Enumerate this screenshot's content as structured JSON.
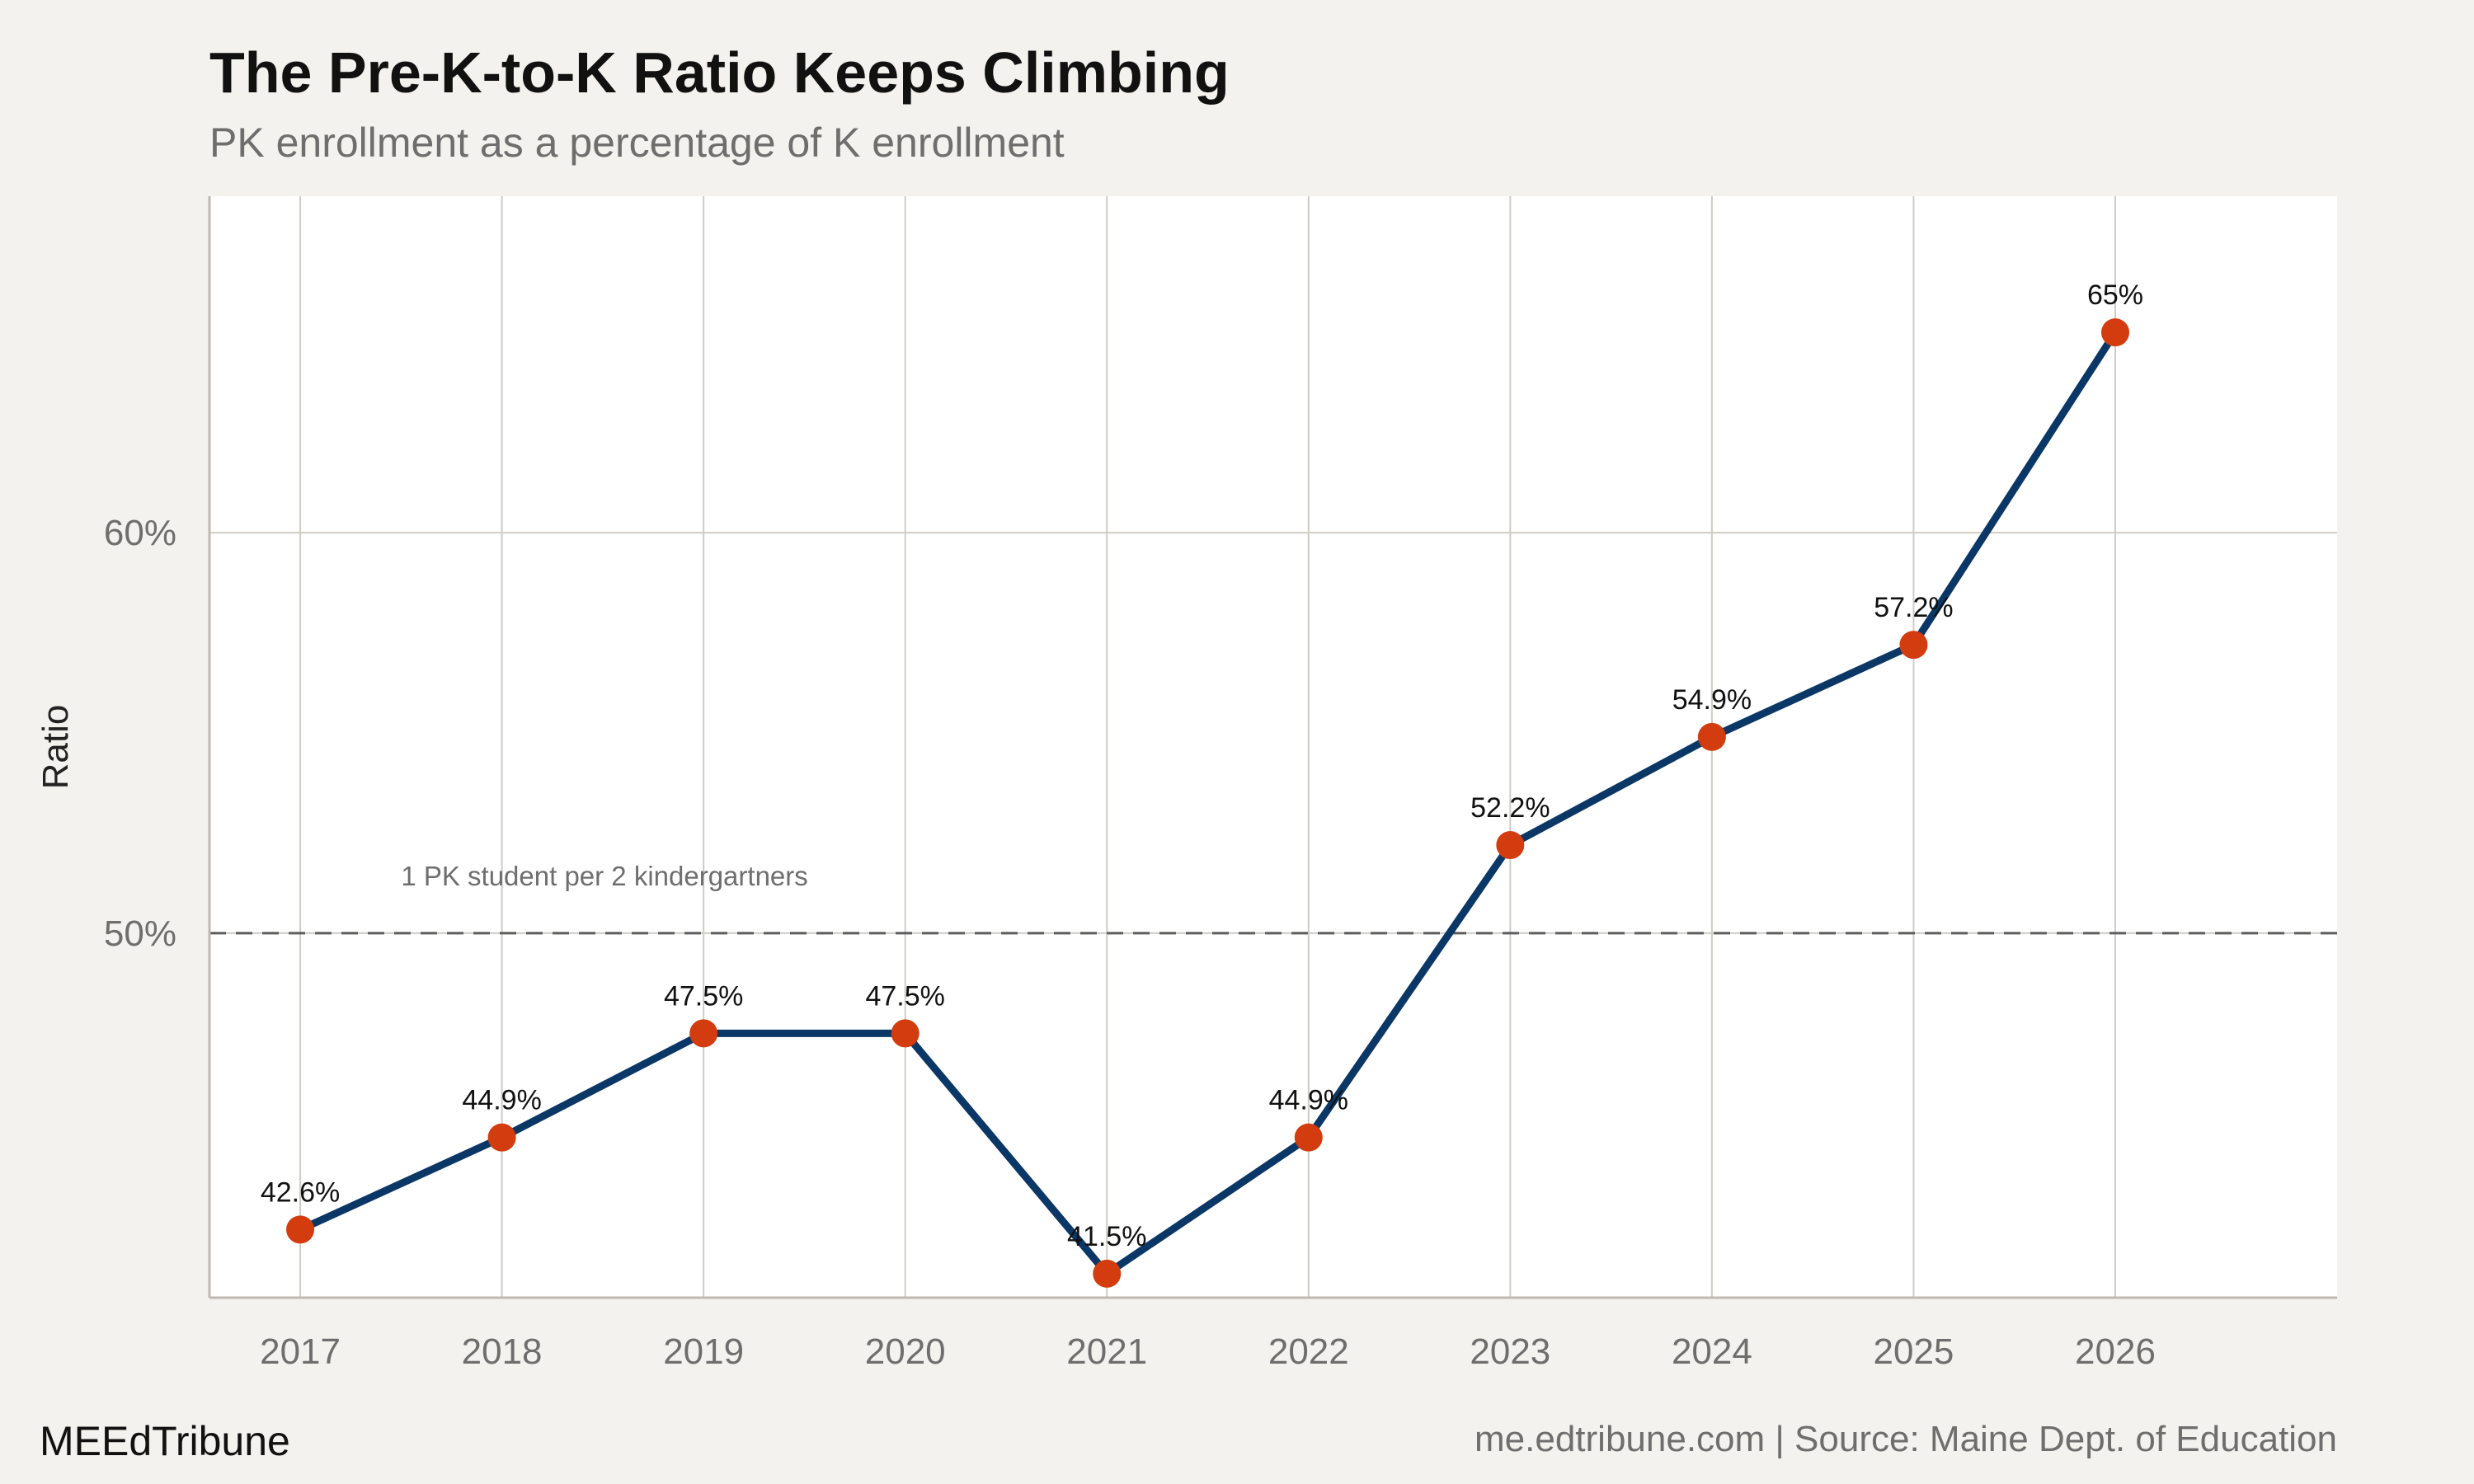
{
  "chart_data": {
    "type": "line",
    "title": "The Pre-K-to-K Ratio Keeps Climbing",
    "subtitle": "PK enrollment as a percentage of K enrollment",
    "xlabel": "",
    "ylabel": "Ratio",
    "x": [
      "2017",
      "2018",
      "2019",
      "2020",
      "2021",
      "2022",
      "2023",
      "2024",
      "2025",
      "2026"
    ],
    "values": [
      42.6,
      44.9,
      47.5,
      47.5,
      41.5,
      44.9,
      52.2,
      54.9,
      57.2,
      65
    ],
    "data_labels": [
      "42.6%",
      "44.9%",
      "47.5%",
      "47.5%",
      "41.5%",
      "44.9%",
      "52.2%",
      "54.9%",
      "57.2%",
      "65%"
    ],
    "yticks": [
      50,
      60
    ],
    "ytick_labels": [
      "50%",
      "60%"
    ],
    "ylim": [
      40.9,
      68.4
    ],
    "xlim": [
      2016.55,
      2027.1
    ],
    "grid": true,
    "reference_line": {
      "value": 50,
      "style": "dashed",
      "label": "1 PK student per 2 kindergartners"
    },
    "colors": {
      "line": "#0b3766",
      "points": "#d23c0f",
      "background": "#f4f2ee",
      "panel": "#ffffff",
      "grid": "#cfccc6",
      "reference": "#5c5c5c"
    }
  },
  "footer": {
    "brand": "MEEdTribune",
    "source": "me.edtribune.com | Source: Maine Dept. of Education"
  }
}
